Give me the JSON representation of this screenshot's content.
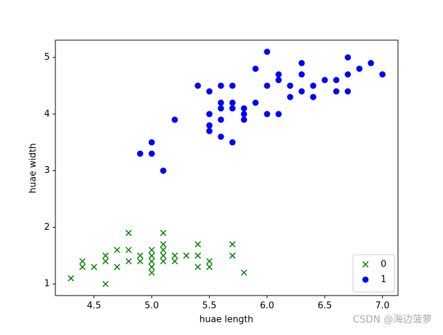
{
  "chart_data": {
    "type": "scatter",
    "xlabel": "huae length",
    "ylabel": "huae width",
    "xlim": [
      4.165,
      7.135
    ],
    "ylim": [
      0.795,
      5.305
    ],
    "xticks": [
      4.5,
      {
        "value": 5,
        "label": "5.0"
      },
      5.5,
      {
        "value": 6,
        "label": "6.0"
      },
      6.5,
      {
        "value": 7,
        "label": "7.0"
      }
    ],
    "yticks": [
      1,
      2,
      3,
      4,
      5
    ],
    "legend": "lower right",
    "watermark": "CSDN @海边菠萝",
    "series": [
      {
        "name": "0",
        "color": "green",
        "marker": "x",
        "x": [
          4.3,
          4.4,
          4.4,
          4.5,
          4.6,
          4.6,
          4.6,
          4.7,
          4.7,
          4.8,
          4.8,
          4.8,
          4.9,
          4.9,
          5.0,
          5.0,
          5.0,
          5.0,
          5.0,
          5.1,
          5.1,
          5.1,
          5.1,
          5.1,
          5.2,
          5.2,
          5.3,
          5.4,
          5.4,
          5.4,
          5.5,
          5.5,
          5.7,
          5.7,
          5.8
        ],
        "values": [
          1.1,
          1.4,
          1.3,
          1.3,
          1.0,
          1.4,
          1.5,
          1.3,
          1.6,
          1.9,
          1.6,
          1.4,
          1.5,
          1.4,
          1.6,
          1.5,
          1.4,
          1.3,
          1.2,
          1.9,
          1.7,
          1.6,
          1.5,
          1.4,
          1.5,
          1.4,
          1.5,
          1.7,
          1.5,
          1.3,
          1.4,
          1.3,
          1.7,
          1.5,
          1.2
        ]
      },
      {
        "name": "1",
        "color": "blue",
        "marker": "o",
        "x": [
          4.9,
          5.0,
          5.0,
          5.1,
          5.2,
          5.4,
          5.5,
          5.5,
          5.5,
          5.5,
          5.6,
          5.6,
          5.6,
          5.6,
          5.6,
          5.7,
          5.7,
          5.7,
          5.7,
          5.8,
          5.8,
          5.8,
          5.9,
          5.9,
          6.0,
          6.0,
          6.0,
          6.1,
          6.1,
          6.1,
          6.2,
          6.2,
          6.3,
          6.3,
          6.3,
          6.4,
          6.4,
          6.5,
          6.6,
          6.6,
          6.7,
          6.7,
          6.7,
          6.8,
          6.9,
          7.0
        ],
        "values": [
          3.3,
          3.5,
          3.3,
          3.0,
          3.9,
          4.5,
          4.4,
          4.0,
          3.8,
          3.7,
          4.5,
          4.2,
          4.1,
          3.9,
          3.6,
          4.5,
          4.2,
          4.1,
          3.5,
          4.1,
          4.0,
          3.9,
          4.8,
          4.2,
          5.1,
          4.5,
          4.0,
          4.7,
          4.6,
          4.0,
          4.5,
          4.3,
          4.9,
          4.7,
          4.4,
          4.5,
          4.3,
          4.6,
          4.6,
          4.4,
          5.0,
          4.7,
          4.4,
          4.8,
          4.9,
          4.7
        ]
      }
    ]
  }
}
